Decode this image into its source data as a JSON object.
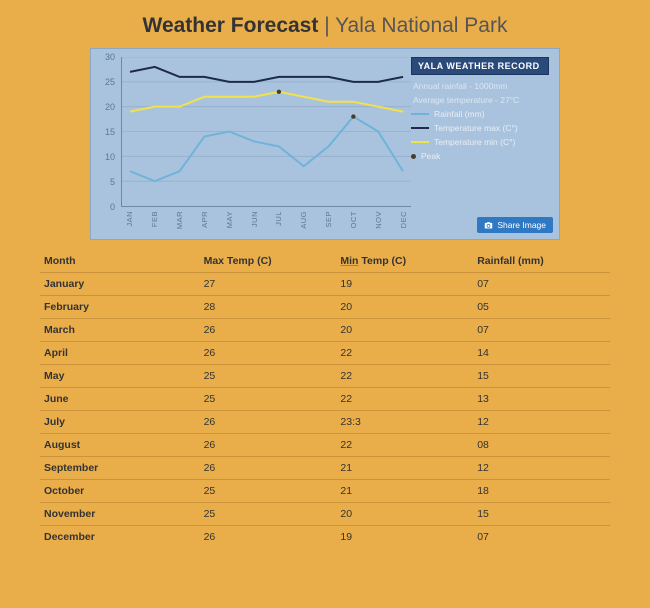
{
  "title": {
    "bold": "Weather Forecast",
    "sep": " | ",
    "location": "Yala National Park"
  },
  "chart": {
    "type": "line",
    "background": "#a9c3de",
    "grid_color": "#96b0ca",
    "axis_color": "#6e89a5",
    "tick_color": "#5b7694",
    "ylim": [
      0,
      30
    ],
    "ytick_step": 5,
    "yticks": [
      "0",
      "5",
      "10",
      "15",
      "20",
      "25",
      "30"
    ],
    "months": [
      "JAN",
      "FEB",
      "MAR",
      "APR",
      "MAY",
      "JUN",
      "JUL",
      "AUG",
      "SEP",
      "OCT",
      "NOV",
      "DEC"
    ],
    "series": {
      "rainfall": {
        "label": "Rainfall (mm)",
        "color": "#6fb3d9",
        "width": 2,
        "values": [
          7,
          5,
          7,
          14,
          15,
          13,
          12,
          8,
          12,
          18,
          15,
          7
        ]
      },
      "tmax": {
        "label": "Temperature max (C°)",
        "color": "#1e2a4a",
        "width": 2,
        "values": [
          27,
          28,
          26,
          26,
          25,
          25,
          26,
          26,
          26,
          25,
          25,
          26
        ]
      },
      "tmin": {
        "label": "Temperature min (C°)",
        "color": "#f2e24a",
        "width": 2,
        "values": [
          19,
          20,
          20,
          22,
          22,
          22,
          23,
          22,
          21,
          21,
          20,
          19
        ]
      }
    },
    "peaks": {
      "label": "Peak",
      "color": "#4b3a2a",
      "points": [
        {
          "i": 6,
          "v": 23
        },
        {
          "i": 9,
          "v": 18
        }
      ]
    },
    "legend": {
      "header": "YALA WEATHER RECORD",
      "header_bg": "#2a4a7a",
      "facts": [
        "Annual rainfall - 1000mm",
        "Average temperature - 27°C"
      ]
    },
    "share_label": "Share Image",
    "share_bg": "#2f78c4"
  },
  "table": {
    "columns": [
      "Month",
      "Max Temp (C)",
      "Min Temp (C)",
      "Rainfall (mm)"
    ],
    "underline_col": 2,
    "rows": [
      [
        "January",
        "27",
        "19",
        "07"
      ],
      [
        "February",
        "28",
        "20",
        "05"
      ],
      [
        "March",
        "26",
        "20",
        "07"
      ],
      [
        "April",
        "26",
        "22",
        "14"
      ],
      [
        "May",
        "25",
        "22",
        "15"
      ],
      [
        "June",
        "25",
        "22",
        "13"
      ],
      [
        "July",
        "26",
        "23:3",
        "12"
      ],
      [
        "August",
        "26",
        "22",
        "08"
      ],
      [
        "September",
        "26",
        "21",
        "12"
      ],
      [
        "October",
        "25",
        "21",
        "18"
      ],
      [
        "November",
        "25",
        "20",
        "15"
      ],
      [
        "December",
        "26",
        "19",
        "07"
      ]
    ],
    "row_border": "#c9923b"
  },
  "page_bg": "#e9ad49"
}
